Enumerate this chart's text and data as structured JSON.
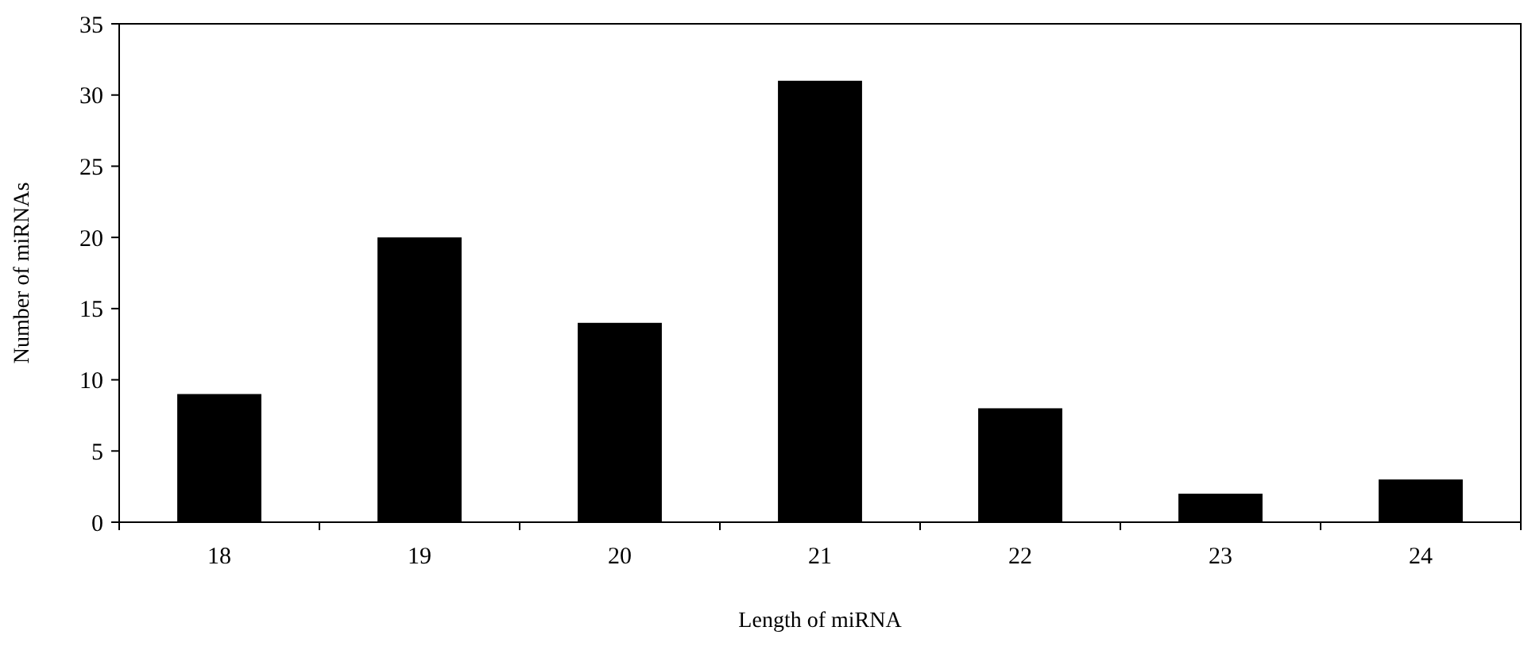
{
  "chart_data": {
    "type": "bar",
    "xlabel": "Length of miRNA",
    "ylabel": "Number of miRNAs",
    "categories": [
      "18",
      "19",
      "20",
      "21",
      "22",
      "23",
      "24"
    ],
    "values": [
      9,
      20,
      14,
      31,
      8,
      2,
      3
    ],
    "color": "#000000",
    "ylim": [
      0,
      35
    ],
    "yticks": [
      0,
      5,
      10,
      15,
      20,
      25,
      30,
      35
    ],
    "grid": false
  }
}
